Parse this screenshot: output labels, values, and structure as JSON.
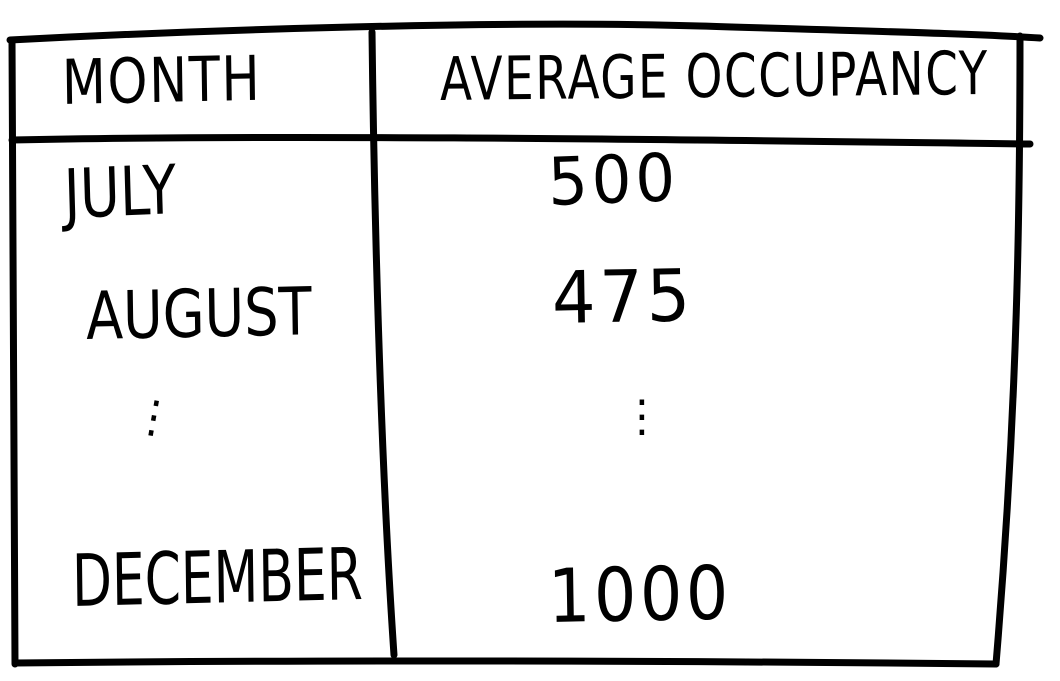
{
  "table": {
    "headers": {
      "month": "MONTH",
      "occupancy": "AVERAGE OCCUPANCY"
    },
    "rows": [
      {
        "month": "JULY",
        "occupancy": "500"
      },
      {
        "month": "AUGUST",
        "occupancy": "475"
      },
      {
        "month": "⋮",
        "occupancy": "⋮"
      },
      {
        "month": "DECEMBER",
        "occupancy": "1000"
      }
    ]
  },
  "colors": {
    "ink": "#000000",
    "paper": "#ffffff"
  }
}
